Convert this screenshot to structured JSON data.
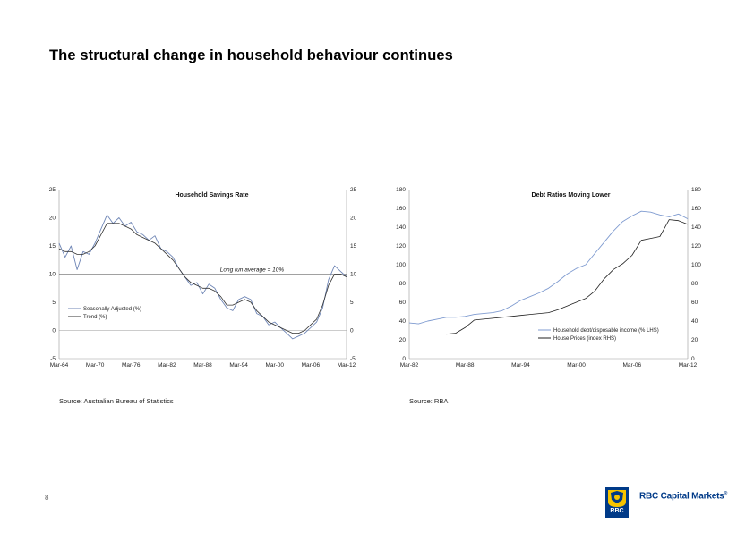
{
  "slide": {
    "title": "The structural change in household behaviour continues",
    "page_number": "8"
  },
  "brand": {
    "name": "RBC Capital Markets",
    "mark": "®",
    "shield_text": "RBC",
    "primary_color": "#003a88",
    "accent_color": "#f6c400",
    "rule_color": "#b9b28b"
  },
  "sources": {
    "left": "Source: Australian Bureau of Statistics",
    "right": "Source: RBA"
  },
  "chart_data": [
    {
      "type": "line",
      "title": "Household Savings Rate",
      "x_tick_labels": [
        "Mar-64",
        "Mar-70",
        "Mar-76",
        "Mar-82",
        "Mar-88",
        "Mar-94",
        "Mar-00",
        "Mar-06",
        "Mar-12"
      ],
      "xlim": [
        1964,
        2012
      ],
      "ylim": [
        -5,
        25
      ],
      "yticks_left": [
        -5,
        0,
        5,
        10,
        15,
        20,
        25
      ],
      "yticks_right": [
        -5,
        0,
        5,
        10,
        15,
        20,
        25
      ],
      "reference_line": {
        "value": 10,
        "label": "Long run average = 10%"
      },
      "legend": [
        "Seasonally Adjusted (%)",
        "Trend (%)"
      ],
      "series": [
        {
          "name": "Seasonally Adjusted (%)",
          "color": "#6f86b6",
          "x": [
            1964,
            1965,
            1966,
            1967,
            1968,
            1969,
            1970,
            1971,
            1972,
            1973,
            1974,
            1975,
            1976,
            1977,
            1978,
            1979,
            1980,
            1981,
            1982,
            1983,
            1984,
            1985,
            1986,
            1987,
            1988,
            1989,
            1990,
            1991,
            1992,
            1993,
            1994,
            1995,
            1996,
            1997,
            1998,
            1999,
            2000,
            2001,
            2002,
            2003,
            2004,
            2005,
            2006,
            2007,
            2008,
            2009,
            2010,
            2011,
            2012
          ],
          "y": [
            15.5,
            13.0,
            15.0,
            10.8,
            14.0,
            13.5,
            15.5,
            18.0,
            20.5,
            19.0,
            20.0,
            18.5,
            19.2,
            17.5,
            17.0,
            16.0,
            16.8,
            14.5,
            14.0,
            13.0,
            11.0,
            9.5,
            8.0,
            8.5,
            6.5,
            8.2,
            7.5,
            5.5,
            4.0,
            3.5,
            5.5,
            6.0,
            5.5,
            3.0,
            2.5,
            1.0,
            1.5,
            0.5,
            -0.5,
            -1.5,
            -1.0,
            -0.5,
            0.5,
            1.5,
            4.0,
            9.0,
            11.5,
            10.5,
            9.5
          ]
        },
        {
          "name": "Trend (%)",
          "color": "#333333",
          "x": [
            1964,
            1965,
            1966,
            1967,
            1968,
            1969,
            1970,
            1971,
            1972,
            1973,
            1974,
            1975,
            1976,
            1977,
            1978,
            1979,
            1980,
            1981,
            1982,
            1983,
            1984,
            1985,
            1986,
            1987,
            1988,
            1989,
            1990,
            1991,
            1992,
            1993,
            1994,
            1995,
            1996,
            1997,
            1998,
            1999,
            2000,
            2001,
            2002,
            2003,
            2004,
            2005,
            2006,
            2007,
            2008,
            2009,
            2010,
            2011,
            2012
          ],
          "y": [
            14.5,
            14.0,
            14.0,
            13.5,
            13.5,
            14.0,
            15.0,
            17.0,
            19.0,
            19.0,
            19.0,
            18.5,
            18.0,
            17.0,
            16.5,
            16.0,
            15.5,
            14.5,
            13.5,
            12.5,
            11.0,
            9.5,
            8.5,
            8.0,
            7.5,
            7.5,
            7.0,
            6.0,
            4.5,
            4.5,
            5.0,
            5.5,
            5.0,
            3.5,
            2.5,
            1.5,
            1.0,
            0.5,
            0.0,
            -0.5,
            -0.5,
            0.0,
            1.0,
            2.0,
            4.5,
            8.0,
            10.0,
            10.0,
            9.5
          ]
        }
      ]
    },
    {
      "type": "line",
      "title": "Debt Ratios Moving Lower",
      "x_tick_labels": [
        "Mar-82",
        "Mar-88",
        "Mar-94",
        "Mar-00",
        "Mar-06",
        "Mar-12"
      ],
      "xlim": [
        1982,
        2012
      ],
      "ylim": [
        0,
        180
      ],
      "yticks_left": [
        0,
        20,
        40,
        60,
        80,
        100,
        120,
        140,
        160,
        180
      ],
      "yticks_right": [
        0,
        20,
        40,
        60,
        80,
        100,
        120,
        140,
        160,
        180
      ],
      "legend": [
        "Household debt/disposable income (% LHS)",
        "House Prices (index RHS)"
      ],
      "series": [
        {
          "name": "Household debt/disposable income (% LHS)",
          "color": "#7f9bd0",
          "x": [
            1982,
            1983,
            1984,
            1985,
            1986,
            1987,
            1988,
            1989,
            1990,
            1991,
            1992,
            1993,
            1994,
            1995,
            1996,
            1997,
            1998,
            1999,
            2000,
            2001,
            2002,
            2003,
            2004,
            2005,
            2006,
            2007,
            2008,
            2009,
            2010,
            2011,
            2012
          ],
          "y": [
            38,
            37,
            40,
            42,
            44,
            44,
            45,
            47,
            48,
            49,
            51,
            56,
            62,
            66,
            70,
            75,
            82,
            90,
            96,
            100,
            112,
            124,
            136,
            146,
            152,
            157,
            156,
            153,
            151,
            154,
            149
          ]
        },
        {
          "name": "House Prices (index RHS)",
          "color": "#222222",
          "x": [
            1986,
            1987,
            1988,
            1989,
            1990,
            1991,
            1992,
            1993,
            1994,
            1995,
            1996,
            1997,
            1998,
            1999,
            2000,
            2001,
            2002,
            2003,
            2004,
            2005,
            2006,
            2007,
            2008,
            2009,
            2010,
            2011,
            2012
          ],
          "y": [
            26,
            27,
            33,
            41,
            42,
            43,
            44,
            45,
            46,
            47,
            48,
            49,
            52,
            56,
            60,
            64,
            72,
            85,
            95,
            101,
            110,
            126,
            128,
            130,
            148,
            147,
            143
          ]
        }
      ]
    }
  ]
}
